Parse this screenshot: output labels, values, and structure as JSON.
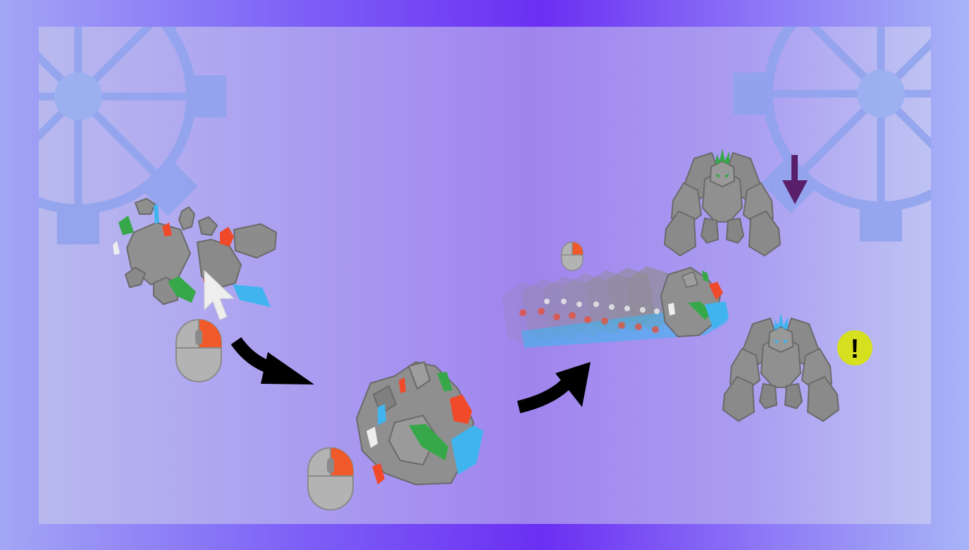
{
  "tutorial": {
    "alert_symbol": "!",
    "steps": [
      {
        "name": "gather",
        "icon": "mouse-left-click-icon"
      },
      {
        "name": "hold-to-form-boulder",
        "icon": "mouse-left-click-icon"
      },
      {
        "name": "release-to-roll",
        "icon": "mouse-left-click-icon"
      }
    ]
  },
  "colors": {
    "frame_edge": "#a3a6f5",
    "frame_center": "#6b2ff2",
    "rock": "#8c8c8c",
    "rock_dark": "#6d6d6d",
    "crystal_red": "#f04a2a",
    "crystal_green": "#37a84a",
    "crystal_blue": "#3fb4ef",
    "crystal_white": "#eeeeee",
    "mouse_button_highlight": "#f05a2a",
    "arrow": "#000000",
    "down_arrow": "#5a1f6a",
    "alert_badge": "#d6e01e"
  }
}
